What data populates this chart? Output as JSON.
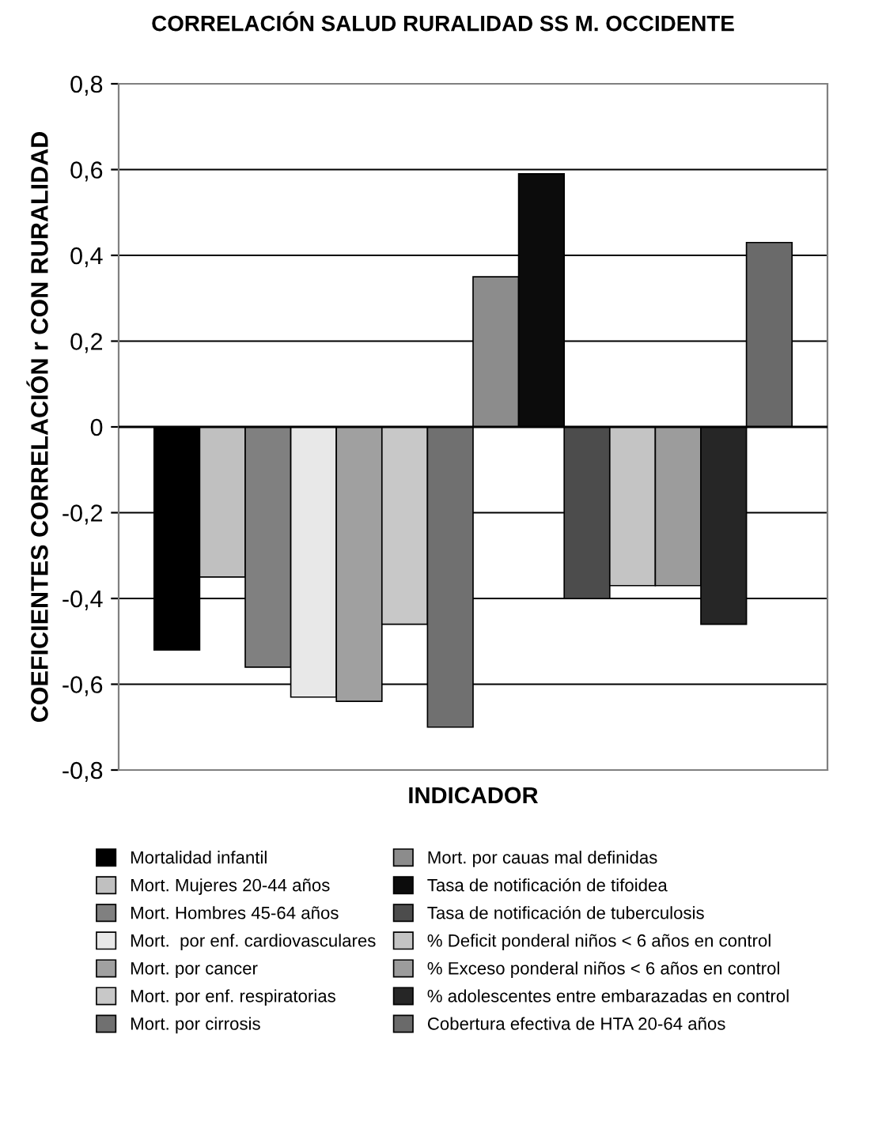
{
  "chart_data": {
    "type": "bar",
    "title": "CORRELACIÓN SALUD RURALIDAD SS M. OCCIDENTE",
    "xlabel": "INDICADOR",
    "ylabel": "COEFICIENTES CORRELACIÓN r CON RURALIDAD",
    "categories": [
      null
    ],
    "series": [
      {
        "name": "Mortalidad infantil",
        "color": "#000000",
        "values": [
          -0.52
        ]
      },
      {
        "name": "Mort. Mujeres 20-44 años",
        "color": "#c0c0c0",
        "values": [
          -0.35
        ]
      },
      {
        "name": "Mort. Hombres 45-64 años",
        "color": "#808080",
        "values": [
          -0.56
        ]
      },
      {
        "name": "Mort.  por enf. cardiovasculares",
        "color": "#e8e8e8",
        "values": [
          -0.63
        ]
      },
      {
        "name": "Mort. por cancer",
        "color": "#a0a0a0",
        "values": [
          -0.64
        ]
      },
      {
        "name": "Mort. por enf. respiratorias",
        "color": "#c8c8c8",
        "values": [
          -0.46
        ]
      },
      {
        "name": "Mort. por cirrosis",
        "color": "#707070",
        "values": [
          -0.7
        ]
      },
      {
        "name": "Mort. por cauas mal definidas",
        "color": "#8c8c8c",
        "values": [
          0.35
        ]
      },
      {
        "name": "Tasa de notificación de tifoidea",
        "color": "#0c0c0c",
        "values": [
          0.59
        ]
      },
      {
        "name": "Tasa de notificación de tuberculosis",
        "color": "#4c4c4c",
        "values": [
          -0.4
        ]
      },
      {
        "name": "% Deficit ponderal niños < 6 años en control",
        "color": "#c4c4c4",
        "values": [
          -0.37
        ]
      },
      {
        "name": "% Exceso ponderal niños < 6 años en control",
        "color": "#9c9c9c",
        "values": [
          -0.37
        ]
      },
      {
        "name": "% adolescentes entre embarazadas en control",
        "color": "#262626",
        "values": [
          -0.46
        ]
      },
      {
        "name": "Cobertura efectiva de HTA 20-64 años",
        "color": "#6a6a6a",
        "values": [
          0.43
        ]
      }
    ],
    "ylim": [
      -0.8,
      0.8
    ],
    "yticks": [
      {
        "value": -0.8,
        "label": "-0,8"
      },
      {
        "value": -0.6,
        "label": "-0,6"
      },
      {
        "value": -0.4,
        "label": "-0,4"
      },
      {
        "value": -0.2,
        "label": "-0,2"
      },
      0,
      {
        "value": 0.2,
        "label": "0,2"
      },
      {
        "value": 0.4,
        "label": "0,4"
      },
      {
        "value": 0.6,
        "label": "0,6"
      },
      {
        "value": 0.8,
        "label": "0,8"
      }
    ],
    "grid": "y",
    "legend": "bottom"
  }
}
